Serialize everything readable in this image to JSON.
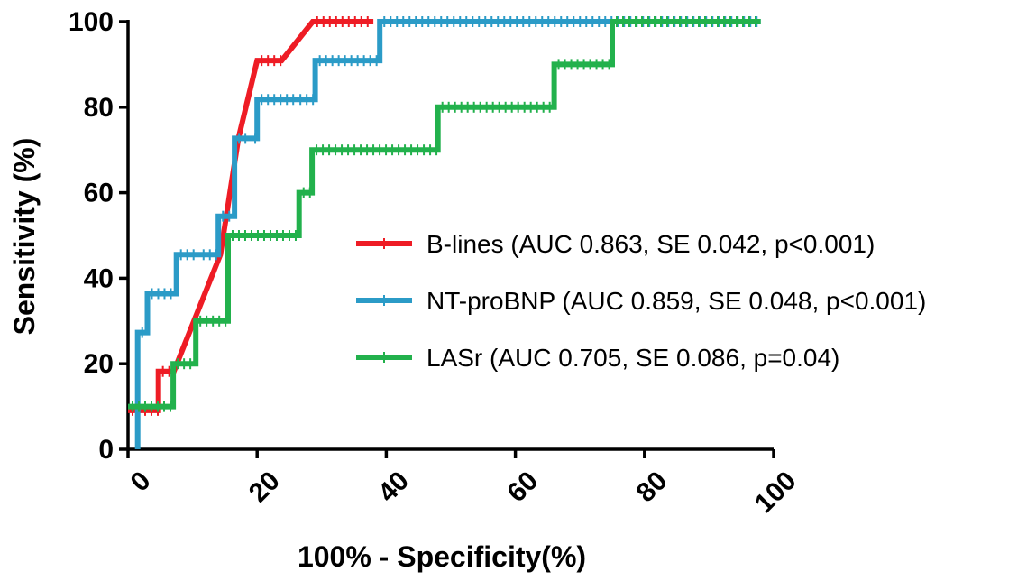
{
  "chart_data": {
    "type": "line",
    "xlabel": "100% - Specificity(%)",
    "ylabel": "Sensitivity (%)",
    "xlim": [
      0,
      100
    ],
    "ylim": [
      0,
      100
    ],
    "x_ticks": [
      "0",
      "20",
      "40",
      "60",
      "80",
      "100"
    ],
    "y_ticks": [
      "0",
      "20",
      "40",
      "60",
      "80",
      "100"
    ],
    "grid": false,
    "legend_position": "center-right",
    "series": [
      {
        "name": "B-lines (AUC 0.863, SE 0.042, p<0.001)",
        "color": "#ee1c25",
        "x": [
          0,
          4.7,
          4.7,
          7.1,
          9.5,
          14.3,
          17.1,
          20,
          20,
          23.8,
          28.6,
          28.6,
          38
        ],
        "y": [
          9.1,
          9.1,
          18.2,
          18.2,
          27.3,
          45.5,
          72.7,
          90.9,
          90.9,
          90.9,
          100,
          100,
          100
        ]
      },
      {
        "name": "NT-proBNP (AUC 0.859, SE 0.048, p<0.001)",
        "color": "#2b9bc7",
        "x": [
          1.5,
          1.5,
          2.5,
          2.5,
          3,
          3,
          7.5,
          7.5,
          11,
          11,
          14,
          14,
          16.5,
          16.5,
          19,
          19,
          20,
          20,
          26,
          26,
          29,
          29,
          39,
          39,
          98
        ],
        "y": [
          0,
          27.3,
          27.3,
          27.3,
          27.3,
          36.4,
          36.4,
          45.5,
          45.5,
          45.5,
          45.5,
          54.5,
          54.5,
          72.7,
          72.7,
          72.7,
          72.7,
          81.8,
          81.8,
          81.8,
          81.8,
          90.9,
          90.9,
          100,
          100
        ]
      },
      {
        "name": "LASr (AUC 0.705, SE 0.086, p=0.04)",
        "color": "#22b14c",
        "x": [
          0,
          7,
          7,
          10.5,
          10.5,
          15.5,
          15.5,
          26.5,
          26.5,
          28.5,
          28.5,
          48,
          48,
          66,
          66,
          75,
          75,
          98
        ],
        "y": [
          10,
          10,
          20,
          20,
          30,
          30,
          50,
          50,
          60,
          60,
          70,
          70,
          80,
          80,
          90,
          90,
          100,
          100
        ]
      }
    ]
  }
}
